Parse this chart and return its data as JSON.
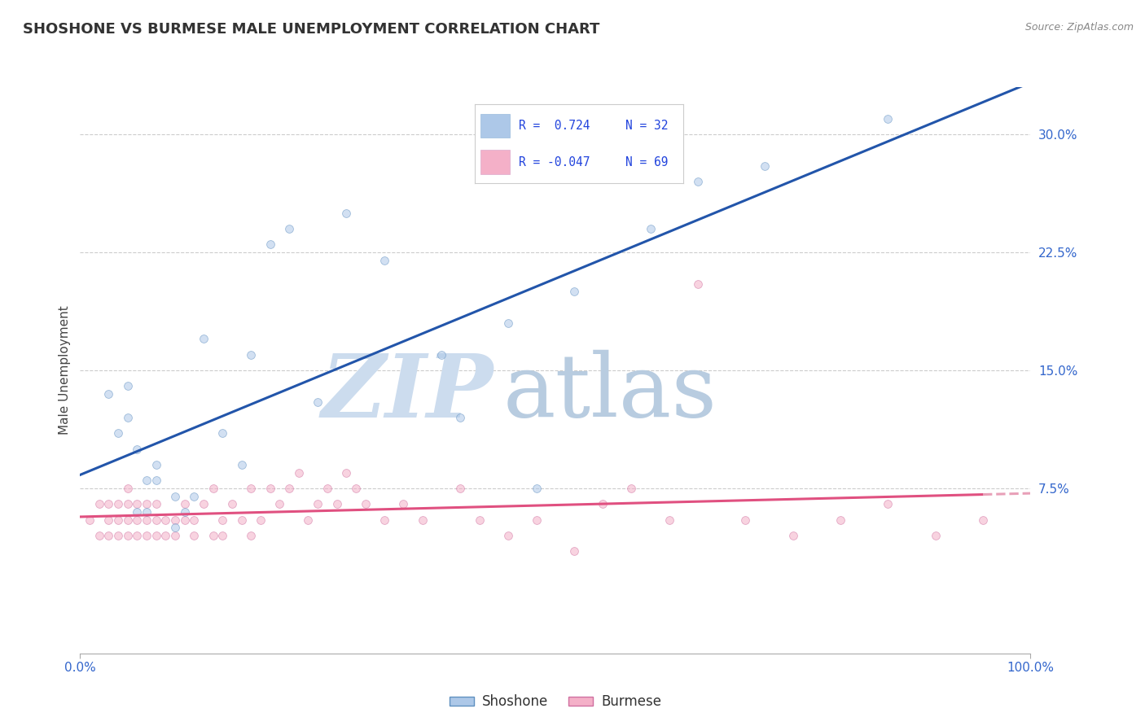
{
  "title": "SHOSHONE VS BURMESE MALE UNEMPLOYMENT CORRELATION CHART",
  "source_text": "Source: ZipAtlas.com",
  "ylabel": "Male Unemployment",
  "xlim": [
    0,
    100
  ],
  "ylim": [
    -3,
    33
  ],
  "ytick_vals": [
    0,
    7.5,
    15.0,
    22.5,
    30.0
  ],
  "ytick_labels": [
    "",
    "7.5%",
    "15.0%",
    "22.5%",
    "30.0%"
  ],
  "xtick_vals": [
    0,
    100
  ],
  "xtick_labels": [
    "0.0%",
    "100.0%"
  ],
  "shoshone_color": "#adc8e8",
  "burmese_color": "#f4b0c8",
  "blue_line_color": "#2255aa",
  "pink_line_color": "#e05080",
  "pink_line_dashed_color": "#e8a0b8",
  "shoshone_edge": "#6090c0",
  "burmese_edge": "#d070a0",
  "watermark_zip_color": "#ccdcee",
  "watermark_atlas_color": "#b8cce0",
  "grid_color": "#cccccc",
  "background_color": "#ffffff",
  "legend_r_shoshone": "R =  0.724",
  "legend_n_shoshone": "N = 32",
  "legend_r_burmese": "R = -0.047",
  "legend_n_burmese": "N = 69",
  "shoshone_label": "Shoshone",
  "burmese_label": "Burmese",
  "title_fontsize": 13,
  "axis_label_fontsize": 11,
  "tick_fontsize": 11,
  "scatter_size": 50,
  "scatter_alpha": 0.55,
  "line_width": 2.2,
  "shoshone_x": [
    3,
    4,
    5,
    5,
    6,
    6,
    7,
    7,
    8,
    8,
    10,
    10,
    11,
    12,
    13,
    15,
    17,
    18,
    20,
    22,
    25,
    28,
    32,
    38,
    45,
    52,
    60,
    65,
    72,
    85,
    40,
    48
  ],
  "shoshone_y": [
    13.5,
    11.0,
    14.0,
    12.0,
    10.0,
    6.0,
    8.0,
    6.0,
    9.0,
    8.0,
    5.0,
    7.0,
    6.0,
    7.0,
    17.0,
    11.0,
    9.0,
    16.0,
    23.0,
    24.0,
    13.0,
    25.0,
    22.0,
    16.0,
    18.0,
    20.0,
    24.0,
    27.0,
    28.0,
    31.0,
    12.0,
    7.5
  ],
  "burmese_x": [
    1,
    2,
    2,
    3,
    3,
    3,
    4,
    4,
    4,
    5,
    5,
    5,
    5,
    6,
    6,
    6,
    7,
    7,
    7,
    8,
    8,
    8,
    9,
    9,
    10,
    10,
    11,
    11,
    12,
    12,
    13,
    14,
    14,
    15,
    15,
    16,
    17,
    18,
    18,
    19,
    20,
    21,
    22,
    23,
    24,
    25,
    26,
    27,
    28,
    29,
    30,
    32,
    34,
    36,
    40,
    42,
    45,
    48,
    52,
    55,
    58,
    62,
    65,
    70,
    75,
    80,
    85,
    90,
    95
  ],
  "burmese_y": [
    5.5,
    4.5,
    6.5,
    4.5,
    5.5,
    6.5,
    5.5,
    6.5,
    4.5,
    5.5,
    4.5,
    6.5,
    7.5,
    4.5,
    5.5,
    6.5,
    4.5,
    5.5,
    6.5,
    4.5,
    5.5,
    6.5,
    5.5,
    4.5,
    4.5,
    5.5,
    5.5,
    6.5,
    4.5,
    5.5,
    6.5,
    7.5,
    4.5,
    4.5,
    5.5,
    6.5,
    5.5,
    4.5,
    7.5,
    5.5,
    7.5,
    6.5,
    7.5,
    8.5,
    5.5,
    6.5,
    7.5,
    6.5,
    8.5,
    7.5,
    6.5,
    5.5,
    6.5,
    5.5,
    7.5,
    5.5,
    4.5,
    5.5,
    3.5,
    6.5,
    7.5,
    5.5,
    20.5,
    5.5,
    4.5,
    5.5,
    6.5,
    4.5,
    5.5
  ]
}
